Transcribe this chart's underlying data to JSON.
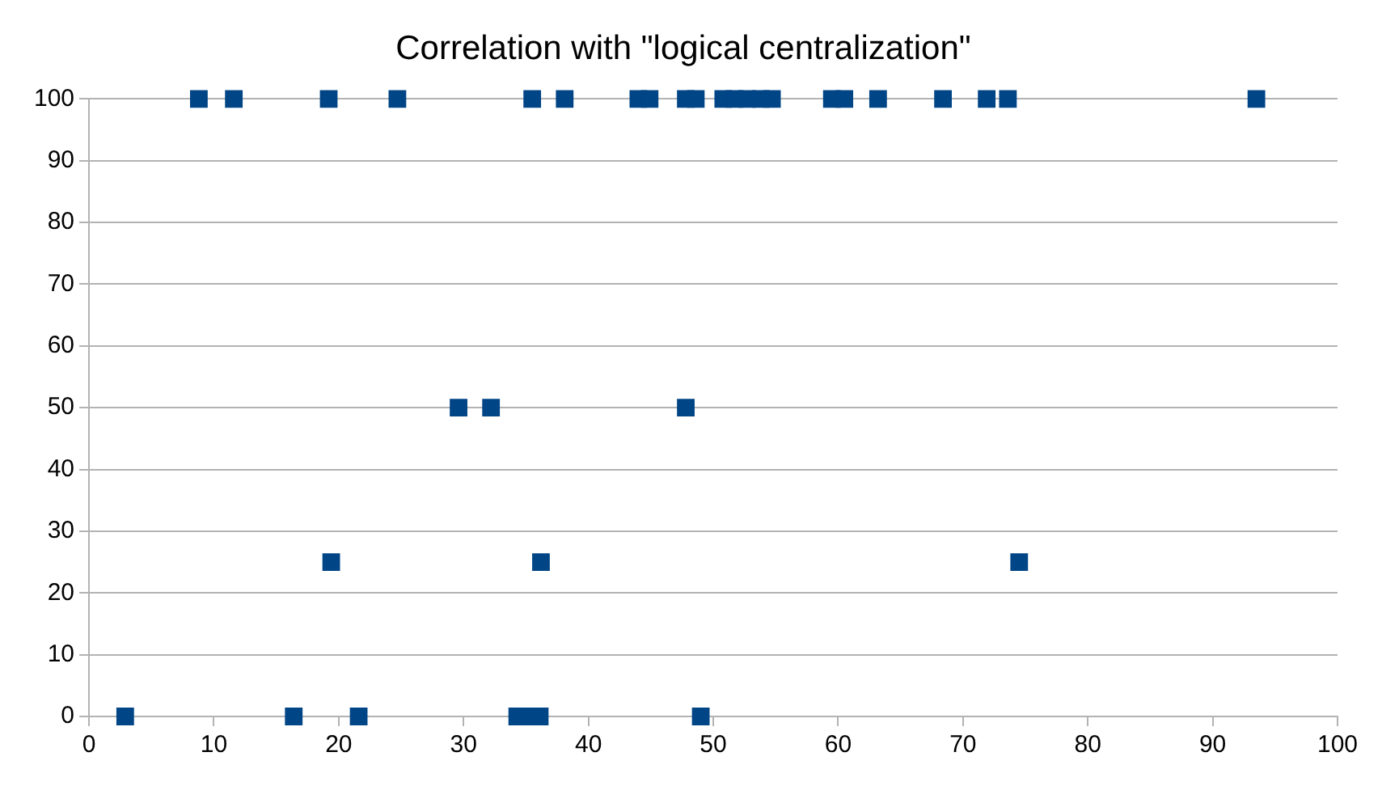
{
  "chart_data": {
    "type": "scatter",
    "title": "Correlation with \"logical centralization\"",
    "series": [
      {
        "color": "#004586",
        "x": [
          8.8,
          11.6,
          19.2,
          24.7,
          35.5,
          38.1,
          44.0,
          44.9,
          47.8,
          48.6,
          50.8,
          51.7,
          52.7,
          53.8,
          54.7,
          59.5,
          60.5,
          63.2,
          68.4,
          71.9,
          72.9,
          73.6,
          93.5,
          29.6,
          32.2,
          47.8,
          19.4,
          36.2,
          74.5,
          2.9,
          16.4,
          21.6,
          34.3,
          35.1,
          36.1,
          49.0
        ],
        "values": [
          100,
          100,
          100,
          100,
          100,
          100,
          100,
          100,
          100,
          100,
          100,
          100,
          100,
          100,
          100,
          100,
          100,
          100,
          100,
          100,
          null,
          100,
          100,
          50,
          50,
          50,
          25,
          25,
          25,
          0,
          0,
          0,
          0,
          0,
          0,
          0
        ]
      }
    ],
    "xlim": [
      0,
      100
    ],
    "xticks": [
      0,
      10,
      20,
      30,
      40,
      50,
      60,
      70,
      80,
      90,
      100
    ],
    "ylim": [
      0,
      100
    ],
    "yticks": [
      0,
      10,
      20,
      30,
      40,
      50,
      60,
      70,
      80,
      90,
      100
    ],
    "grid": "y",
    "marker": "square",
    "legend": false
  }
}
